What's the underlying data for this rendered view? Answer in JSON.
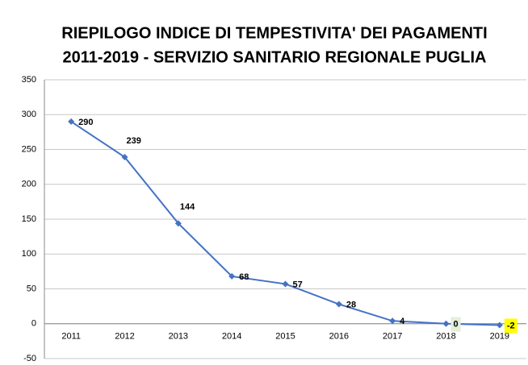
{
  "chart_data": {
    "type": "line",
    "title": [
      "RIEPILOGO INDICE DI TEMPESTIVITA' DEI PAGAMENTI",
      "2011-2019 - SERVIZIO SANITARIO REGIONALE PUGLIA"
    ],
    "categories": [
      "2011",
      "2012",
      "2013",
      "2014",
      "2015",
      "2016",
      "2017",
      "2018",
      "2019"
    ],
    "series": [
      {
        "color": "#4472c4",
        "values": [
          290,
          239,
          144,
          68,
          57,
          28,
          4,
          0,
          -2
        ]
      }
    ],
    "value_label_backgrounds": [
      null,
      null,
      null,
      null,
      null,
      null,
      null,
      "#e2efda",
      "#ffff00"
    ],
    "ylim": [
      -50,
      350
    ],
    "yticks": [
      -50,
      0,
      50,
      100,
      150,
      200,
      250,
      300,
      350
    ],
    "grid": true
  }
}
